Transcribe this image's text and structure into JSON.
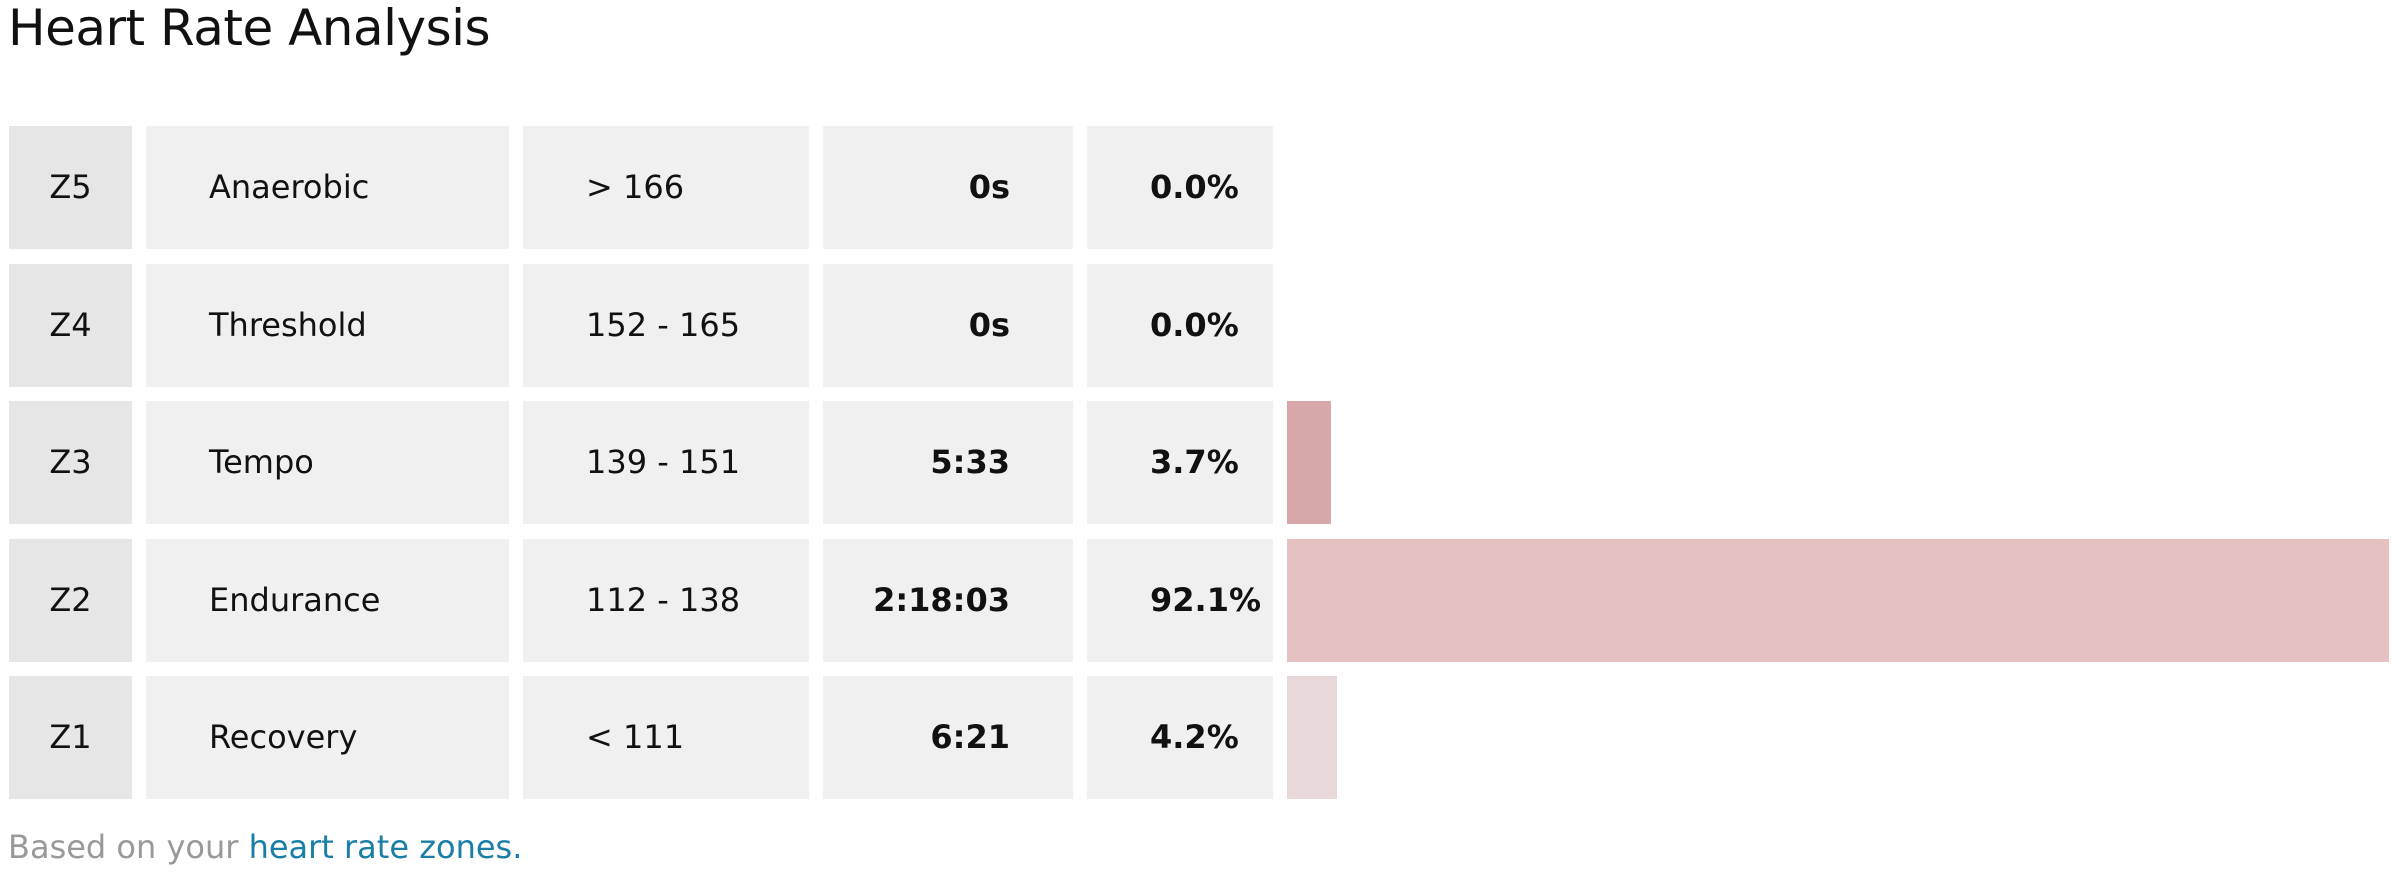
{
  "title": "Heart Rate Analysis",
  "rows": [
    {
      "zone": "Z5",
      "name": "Anaerobic",
      "range": "> 166",
      "time": "0s",
      "percent": 0.0,
      "percent_label": "0.0%",
      "color": "#d8a7aa"
    },
    {
      "zone": "Z4",
      "name": "Threshold",
      "range": "152 - 165",
      "time": "0s",
      "percent": 0.0,
      "percent_label": "0.0%",
      "color": "#d8a7aa"
    },
    {
      "zone": "Z3",
      "name": "Tempo",
      "range": "139 - 151",
      "time": "5:33",
      "percent": 3.7,
      "percent_label": "3.7%",
      "color": "#d8a7aa"
    },
    {
      "zone": "Z2",
      "name": "Endurance",
      "range": "112 - 138",
      "time": "2:18:03",
      "percent": 92.1,
      "percent_label": "92.1%",
      "color": "#e6c1c2"
    },
    {
      "zone": "Z1",
      "name": "Recovery",
      "range": "< 111",
      "time": "6:21",
      "percent": 4.2,
      "percent_label": "4.2%",
      "color": "#e8d8d9"
    }
  ],
  "footer": {
    "text": "Based on your",
    "link": "heart rate zones."
  }
}
